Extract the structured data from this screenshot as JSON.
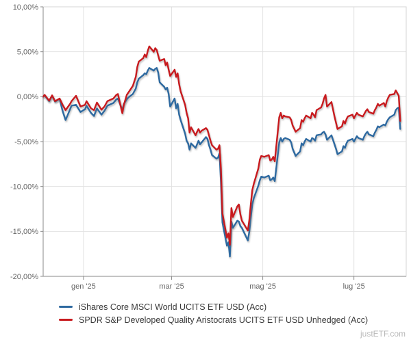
{
  "watermark": "justETF.com",
  "chart_data": {
    "type": "line",
    "title": "",
    "xlabel": "",
    "ylabel": "",
    "grid": true,
    "legend_position": "bottom-left",
    "x_axis": {
      "domain": [
        "2024-12-05",
        "2025-08-05"
      ],
      "tick_dates": [
        "2025-01-01",
        "2025-03-01",
        "2025-05-01",
        "2025-07-01"
      ],
      "tick_labels": [
        "gen '25",
        "mar '25",
        "mag '25",
        "lug '25"
      ]
    },
    "y_axis": {
      "range": [
        -20,
        10
      ],
      "unit": "%",
      "tick_values": [
        10,
        5,
        0,
        -5,
        -10,
        -15,
        -20
      ],
      "tick_labels": [
        "10,00%",
        "5,00%",
        "0,00%",
        "-5,00%",
        "-10,00%",
        "-15,00%",
        "-20,00%"
      ]
    },
    "dates": [
      "2024-12-05",
      "2024-12-06",
      "2024-12-09",
      "2024-12-11",
      "2024-12-13",
      "2024-12-16",
      "2024-12-18",
      "2024-12-20",
      "2024-12-23",
      "2024-12-24",
      "2024-12-27",
      "2024-12-30",
      "2025-01-02",
      "2025-01-03",
      "2025-01-06",
      "2025-01-08",
      "2025-01-10",
      "2025-01-13",
      "2025-01-15",
      "2025-01-17",
      "2025-01-21",
      "2025-01-23",
      "2025-01-24",
      "2025-01-27",
      "2025-01-28",
      "2025-01-30",
      "2025-01-31",
      "2025-02-03",
      "2025-02-05",
      "2025-02-06",
      "2025-02-07",
      "2025-02-10",
      "2025-02-11",
      "2025-02-12",
      "2025-02-13",
      "2025-02-14",
      "2025-02-17",
      "2025-02-18",
      "2025-02-19",
      "2025-02-20",
      "2025-02-21",
      "2025-02-24",
      "2025-02-25",
      "2025-02-26",
      "2025-02-27",
      "2025-02-28",
      "2025-03-03",
      "2025-03-04",
      "2025-03-05",
      "2025-03-06",
      "2025-03-07",
      "2025-03-10",
      "2025-03-11",
      "2025-03-12",
      "2025-03-13",
      "2025-03-14",
      "2025-03-17",
      "2025-03-18",
      "2025-03-19",
      "2025-03-20",
      "2025-03-21",
      "2025-03-24",
      "2025-03-25",
      "2025-03-26",
      "2025-03-27",
      "2025-03-28",
      "2025-03-31",
      "2025-04-01",
      "2025-04-02",
      "2025-04-03",
      "2025-04-04",
      "2025-04-07",
      "2025-04-08",
      "2025-04-09",
      "2025-04-10",
      "2025-04-11",
      "2025-04-14",
      "2025-04-15",
      "2025-04-16",
      "2025-04-17",
      "2025-04-21",
      "2025-04-22",
      "2025-04-23",
      "2025-04-24",
      "2025-04-25",
      "2025-04-28",
      "2025-04-29",
      "2025-04-30",
      "2025-05-02",
      "2025-05-05",
      "2025-05-06",
      "2025-05-07",
      "2025-05-08",
      "2025-05-09",
      "2025-05-12",
      "2025-05-13",
      "2025-05-14",
      "2025-05-15",
      "2025-05-16",
      "2025-05-19",
      "2025-05-20",
      "2025-05-21",
      "2025-05-23",
      "2025-05-26",
      "2025-05-27",
      "2025-05-28",
      "2025-05-29",
      "2025-05-30",
      "2025-06-02",
      "2025-06-03",
      "2025-06-04",
      "2025-06-05",
      "2025-06-06",
      "2025-06-09",
      "2025-06-10",
      "2025-06-11",
      "2025-06-12",
      "2025-06-13",
      "2025-06-16",
      "2025-06-17",
      "2025-06-18",
      "2025-06-19",
      "2025-06-20",
      "2025-06-23",
      "2025-06-24",
      "2025-06-25",
      "2025-06-26",
      "2025-06-27",
      "2025-06-30",
      "2025-07-01",
      "2025-07-02",
      "2025-07-03",
      "2025-07-04",
      "2025-07-07",
      "2025-07-08",
      "2025-07-09",
      "2025-07-10",
      "2025-07-11",
      "2025-07-14",
      "2025-07-15",
      "2025-07-16",
      "2025-07-17",
      "2025-07-18",
      "2025-07-21",
      "2025-07-22",
      "2025-07-23",
      "2025-07-24",
      "2025-07-25",
      "2025-07-28",
      "2025-07-29",
      "2025-07-30",
      "2025-07-31",
      "2025-08-01"
    ],
    "series": [
      {
        "name": "iShares Core MSCI World UCITS ETF USD (Acc)",
        "color": "#2d69a0",
        "values": [
          0.0,
          0.15,
          -0.5,
          0.1,
          -0.55,
          -0.25,
          -1.6,
          -2.6,
          -1.4,
          -1.0,
          -0.9,
          -1.7,
          -1.4,
          -1.0,
          -1.8,
          -2.15,
          -1.3,
          -2.0,
          -1.6,
          -1.0,
          -0.7,
          -0.3,
          -0.2,
          -1.5,
          -0.8,
          -0.3,
          -0.1,
          0.3,
          0.9,
          1.6,
          2.0,
          2.4,
          2.6,
          2.5,
          2.9,
          3.2,
          2.9,
          3.1,
          3.2,
          2.7,
          1.6,
          1.1,
          0.8,
          1.0,
          0.3,
          -1.1,
          -0.2,
          -1.3,
          -0.8,
          -2.0,
          -2.6,
          -4.1,
          -4.9,
          -5.2,
          -5.9,
          -5.2,
          -5.7,
          -5.3,
          -4.9,
          -5.3,
          -5.1,
          -4.5,
          -4.7,
          -5.4,
          -5.9,
          -6.5,
          -6.9,
          -6.8,
          -6.3,
          -9.5,
          -14.0,
          -16.6,
          -16.2,
          -17.8,
          -13.9,
          -14.6,
          -13.8,
          -13.9,
          -14.4,
          -14.6,
          -16.0,
          -15.0,
          -13.4,
          -12.0,
          -11.3,
          -9.9,
          -9.3,
          -8.9,
          -9.0,
          -8.8,
          -9.3,
          -9.2,
          -9.0,
          -9.4,
          -5.1,
          -4.6,
          -5.0,
          -4.7,
          -4.6,
          -4.8,
          -5.1,
          -5.8,
          -6.6,
          -6.1,
          -5.2,
          -5.4,
          -5.0,
          -4.7,
          -5.0,
          -4.6,
          -4.7,
          -4.9,
          -4.3,
          -4.2,
          -4.0,
          -3.9,
          -4.2,
          -4.8,
          -4.3,
          -4.8,
          -5.3,
          -5.8,
          -6.4,
          -6.1,
          -5.5,
          -5.7,
          -5.2,
          -4.9,
          -4.7,
          -5.0,
          -4.7,
          -4.4,
          -4.6,
          -4.8,
          -4.4,
          -4.1,
          -3.9,
          -4.2,
          -4.4,
          -4.0,
          -3.7,
          -3.3,
          -3.4,
          -3.1,
          -3.2,
          -2.8,
          -2.5,
          -2.3,
          -2.0,
          -1.5,
          -1.3,
          -1.2,
          -3.6
        ]
      },
      {
        "name": "SPDR S&P Developed Quality Aristocrats UCITS ETF USD Unhedged (Acc)",
        "color": "#c81a1e",
        "values": [
          0.0,
          0.2,
          -0.45,
          0.15,
          -0.5,
          -0.2,
          -0.9,
          -1.5,
          -0.8,
          -0.5,
          0.1,
          -1.1,
          -0.9,
          -0.5,
          -1.3,
          -1.5,
          -0.65,
          -1.45,
          -1.1,
          -0.5,
          -0.2,
          0.2,
          0.3,
          -1.85,
          -0.9,
          0.2,
          0.45,
          1.2,
          2.2,
          3.3,
          3.9,
          4.3,
          4.7,
          4.4,
          5.1,
          5.6,
          5.0,
          5.4,
          5.2,
          4.6,
          4.0,
          4.2,
          3.5,
          3.8,
          3.0,
          2.3,
          3.0,
          2.2,
          2.6,
          1.4,
          0.6,
          -0.9,
          -1.8,
          -2.4,
          -4.0,
          -3.4,
          -4.3,
          -3.9,
          -3.6,
          -4.0,
          -3.8,
          -3.5,
          -3.7,
          -4.3,
          -4.9,
          -5.4,
          -5.9,
          -5.8,
          -5.4,
          -8.0,
          -13.0,
          -15.7,
          -15.2,
          -16.5,
          -12.4,
          -13.4,
          -12.2,
          -12.0,
          -13.1,
          -13.8,
          -14.9,
          -13.7,
          -11.9,
          -10.4,
          -9.7,
          -8.0,
          -7.0,
          -6.6,
          -6.7,
          -6.5,
          -7.1,
          -7.0,
          -6.7,
          -7.2,
          -2.3,
          -1.8,
          -2.4,
          -2.1,
          -2.2,
          -2.3,
          -2.6,
          -3.2,
          -3.9,
          -3.5,
          -2.6,
          -2.8,
          -2.4,
          -2.1,
          -2.4,
          -1.8,
          -2.0,
          -2.3,
          -1.5,
          -1.2,
          -0.8,
          -0.2,
          0.2,
          -1.1,
          -0.6,
          -1.4,
          -2.2,
          -2.9,
          -3.6,
          -3.3,
          -2.7,
          -3.0,
          -2.5,
          -2.2,
          -2.0,
          -2.4,
          -2.1,
          -1.8,
          -2.0,
          -2.2,
          -1.9,
          -1.6,
          -1.4,
          -1.7,
          -1.9,
          -1.5,
          -1.2,
          -0.8,
          -1.0,
          -0.7,
          -1.1,
          -0.5,
          -0.1,
          0.2,
          0.3,
          0.7,
          0.4,
          0.1,
          -2.7
        ]
      }
    ]
  }
}
